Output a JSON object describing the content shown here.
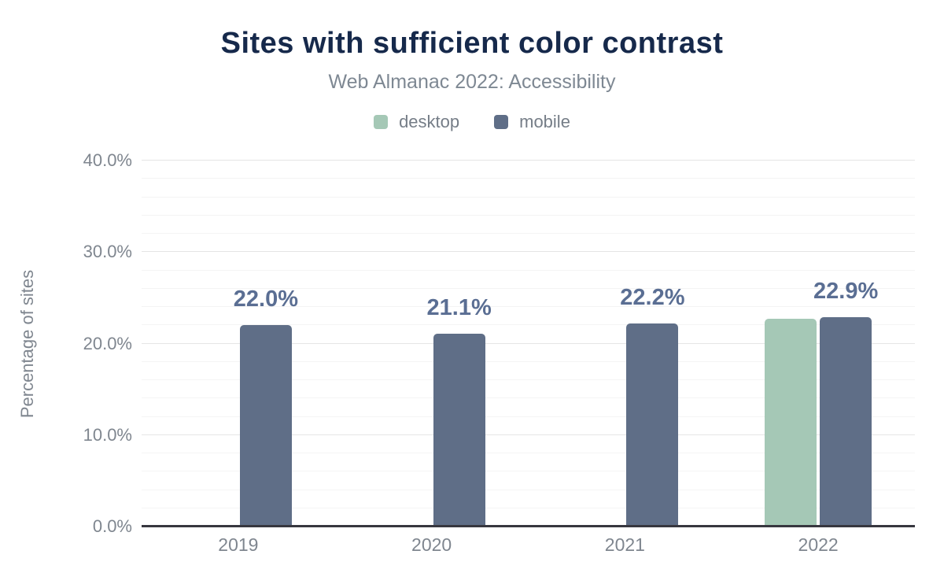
{
  "chart_data": {
    "type": "bar",
    "title": "Sites with sufficient color contrast",
    "subtitle": "Web Almanac 2022: Accessibility",
    "ylabel": "Percentage of sites",
    "xlabel": "",
    "categories": [
      "2019",
      "2020",
      "2021",
      "2022"
    ],
    "series": [
      {
        "name": "desktop",
        "color": "#a5c8b6",
        "values": [
          null,
          null,
          null,
          22.7
        ]
      },
      {
        "name": "mobile",
        "color": "#5f6e87",
        "values": [
          22.0,
          21.1,
          22.2,
          22.9
        ]
      }
    ],
    "bar_value_labels": [
      "22.0%",
      "21.1%",
      "22.2%",
      "22.9%"
    ],
    "y_axis": {
      "min": 0,
      "max": 40,
      "major_step": 10,
      "minor_step": 2,
      "unit": "%",
      "tick_labels": [
        "0.0%",
        "10.0%",
        "20.0%",
        "30.0%",
        "40.0%"
      ]
    },
    "legend_position": "top",
    "grid": "on",
    "colors": {
      "title": "#16294b",
      "subtitle": "#7e8893",
      "legend_text": "#757d87",
      "tick_label": "#7f868f",
      "value_label": "#5a6e93",
      "axis_line": "#37373f",
      "gridline_major": "#e5e5e5",
      "gridline_minor": "#f4f4f4"
    }
  }
}
